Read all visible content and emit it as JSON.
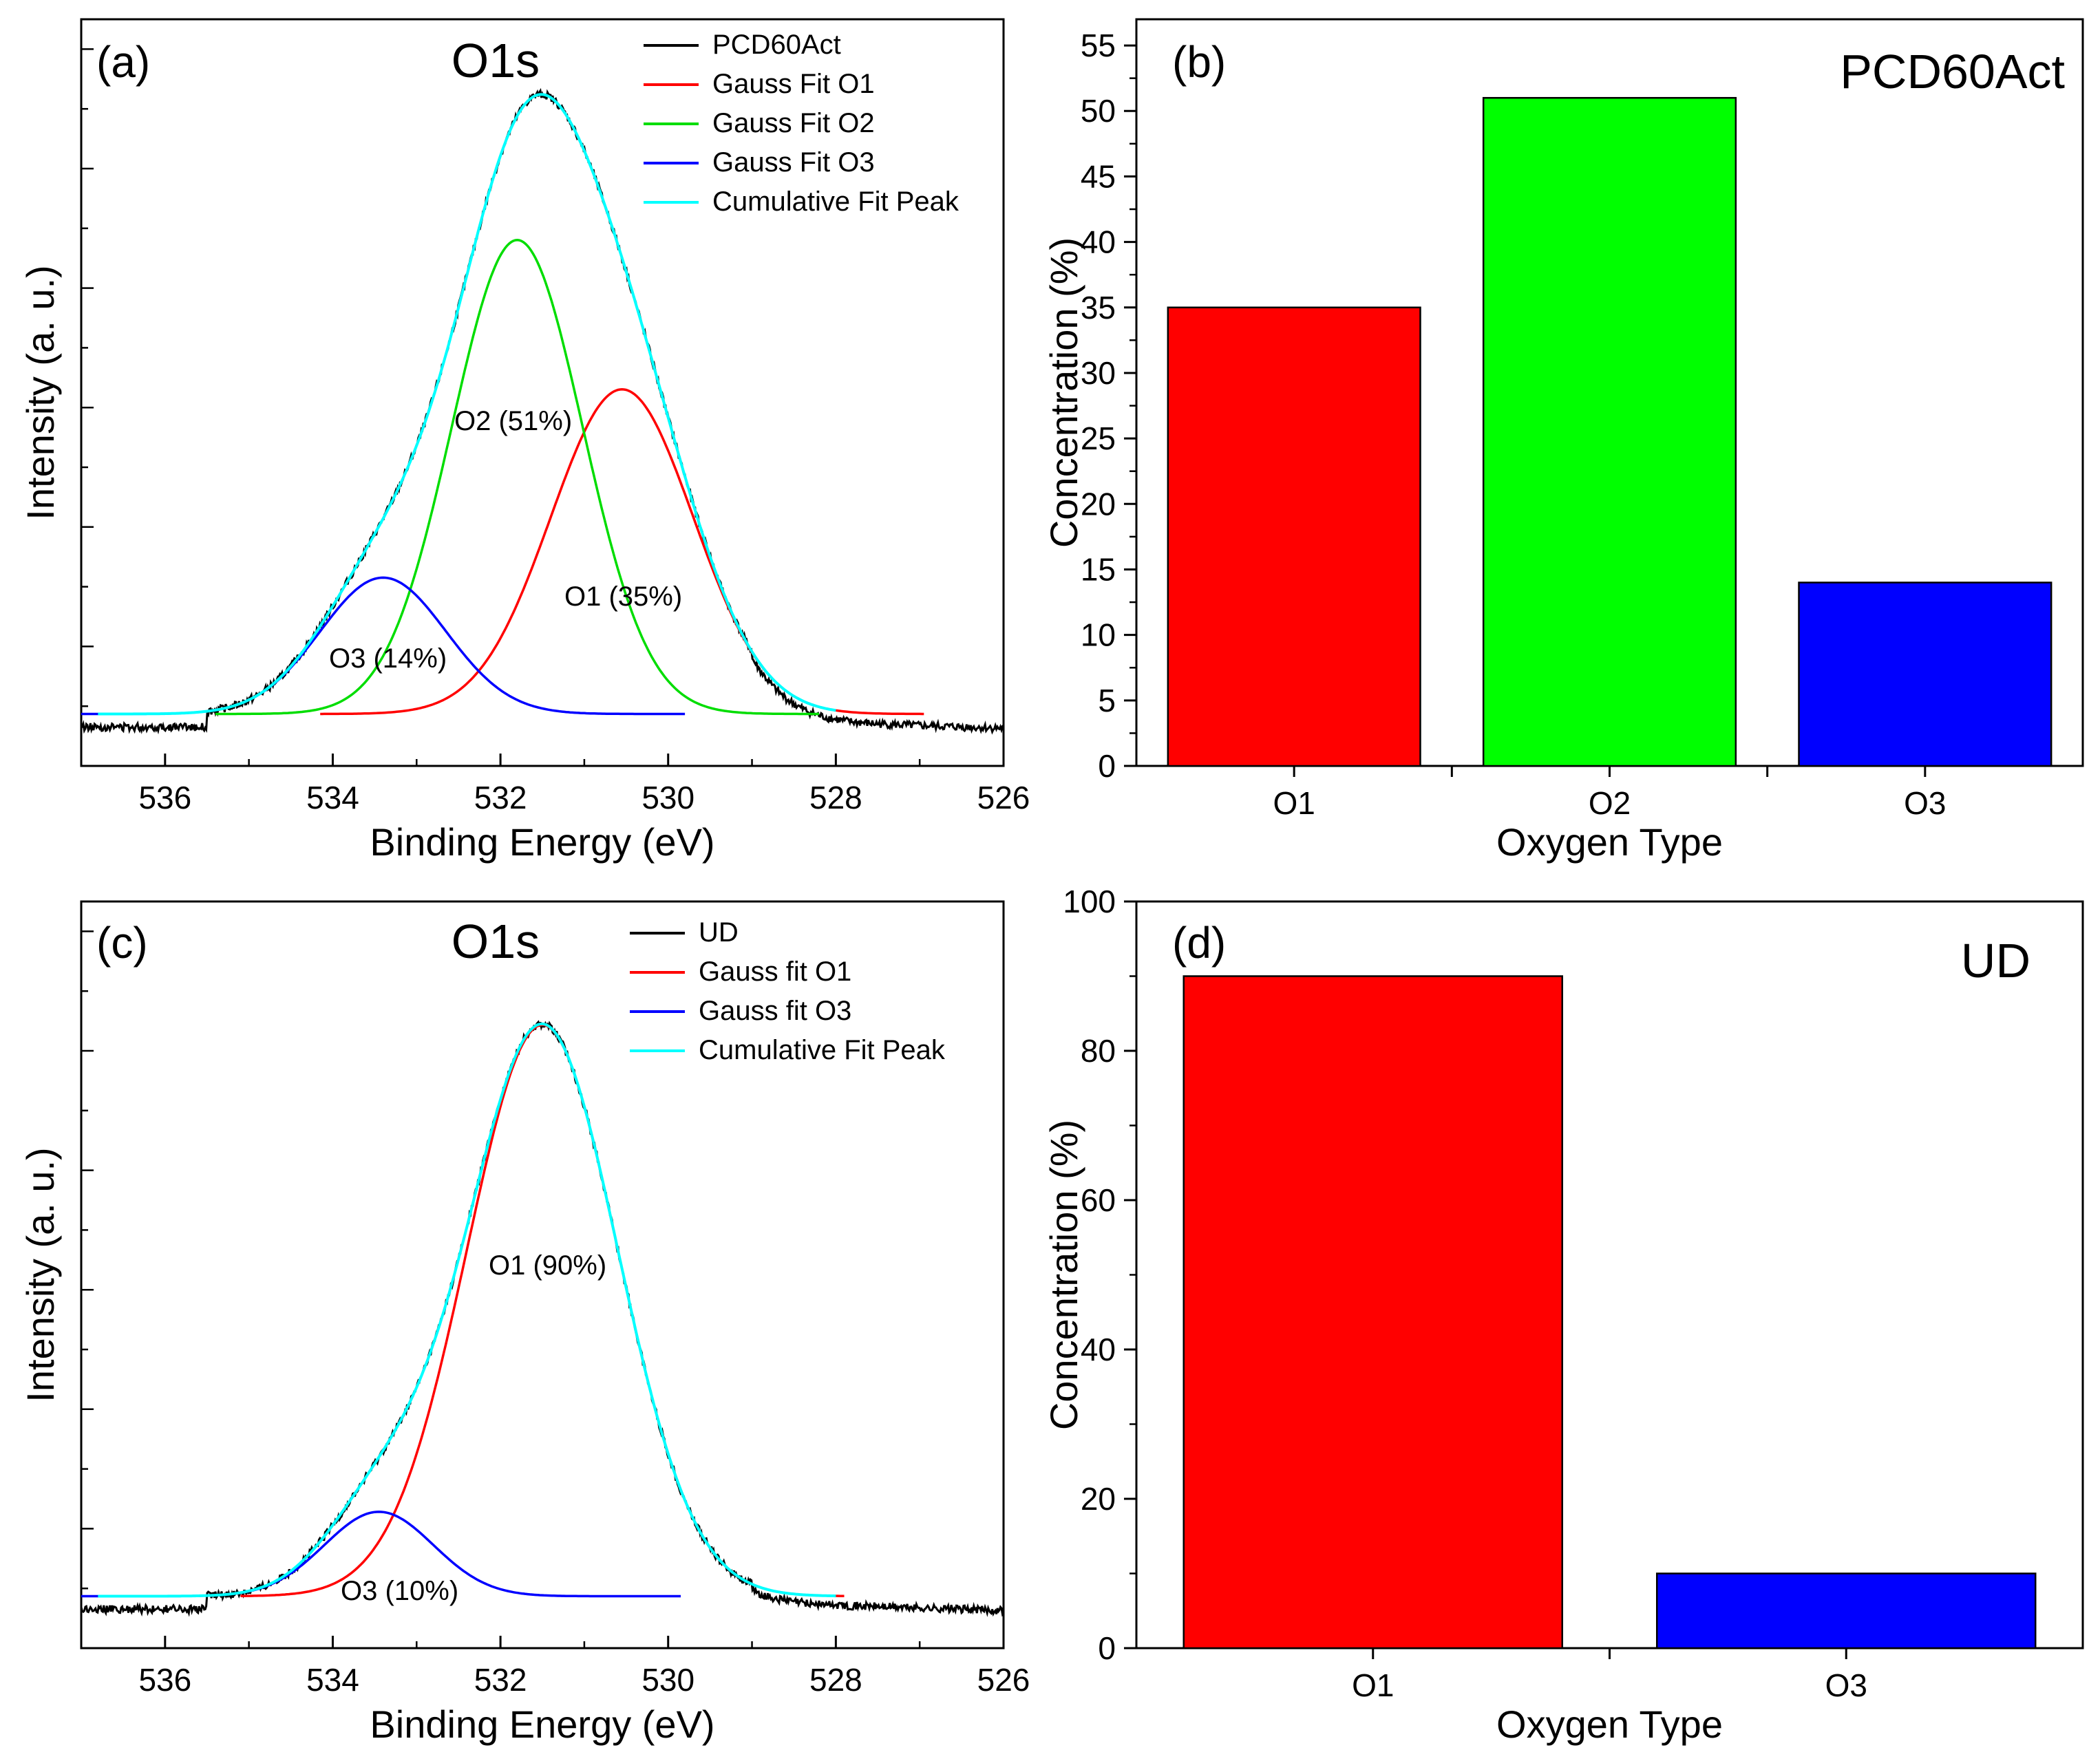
{
  "chart_data": [
    {
      "panel": "(a)",
      "type": "line",
      "title": "O1s",
      "xlabel": "Binding Energy (eV)",
      "ylabel": "Intensity (a. u.)",
      "xlim": [
        537,
        526
      ],
      "xticks": [
        536,
        534,
        532,
        530,
        528,
        526
      ],
      "ylim": [
        0,
        1.15
      ],
      "baseline": 0.08,
      "series": [
        {
          "name": "PCD60Act",
          "color": "#000000",
          "kind": "data"
        },
        {
          "name": "Gauss Fit O1",
          "color": "#ff0000",
          "center": 530.55,
          "height": 0.5,
          "sigma": 0.85
        },
        {
          "name": "Gauss Fit O2",
          "color": "#00dd00",
          "center": 531.8,
          "height": 0.73,
          "sigma": 0.78
        },
        {
          "name": "Gauss Fit O3",
          "color": "#0000ff",
          "center": 533.4,
          "height": 0.21,
          "sigma": 0.75
        },
        {
          "name": "Cumulative Fit Peak",
          "color": "#00ffff",
          "kind": "sum"
        }
      ],
      "annotations": [
        "O2 (51%)",
        "O1 (35%)",
        "O3 (14%)"
      ]
    },
    {
      "panel": "(b)",
      "type": "bar",
      "title": "PCD60Act",
      "xlabel": "Oxygen Type",
      "ylabel": "Concentration (%)",
      "categories": [
        "O1",
        "O2",
        "O3"
      ],
      "values": [
        35,
        51,
        14
      ],
      "colors": [
        "#ff0000",
        "#00ff00",
        "#0000ff"
      ],
      "ylim": [
        0,
        57
      ],
      "yticks": [
        0,
        5,
        10,
        15,
        20,
        25,
        30,
        35,
        40,
        45,
        50,
        55
      ]
    },
    {
      "panel": "(c)",
      "type": "line",
      "title": "O1s",
      "xlabel": "Binding Energy (eV)",
      "ylabel": "Intensity (a. u.)",
      "xlim": [
        537,
        526
      ],
      "xticks": [
        536,
        534,
        532,
        530,
        528,
        526
      ],
      "ylim": [
        0,
        1.15
      ],
      "baseline": 0.08,
      "series": [
        {
          "name": "UD",
          "color": "#000000",
          "kind": "data"
        },
        {
          "name": "Gauss fit O1",
          "color": "#ff0000",
          "center": 531.5,
          "height": 0.88,
          "sigma": 0.9
        },
        {
          "name": "Gauss fit O3",
          "color": "#0000ff",
          "center": 533.45,
          "height": 0.13,
          "sigma": 0.65
        },
        {
          "name": "Cumulative Fit Peak",
          "color": "#00ffff",
          "kind": "sum"
        }
      ],
      "annotations": [
        "O1 (90%)",
        "O3 (10%)"
      ]
    },
    {
      "panel": "(d)",
      "type": "bar",
      "title": "UD",
      "xlabel": "Oxygen Type",
      "ylabel": "Concentration (%)",
      "categories": [
        "O1",
        "O3"
      ],
      "values": [
        90,
        10
      ],
      "colors": [
        "#ff0000",
        "#0000ff"
      ],
      "ylim": [
        0,
        100
      ],
      "yticks": [
        0,
        20,
        40,
        60,
        80,
        100
      ]
    }
  ]
}
